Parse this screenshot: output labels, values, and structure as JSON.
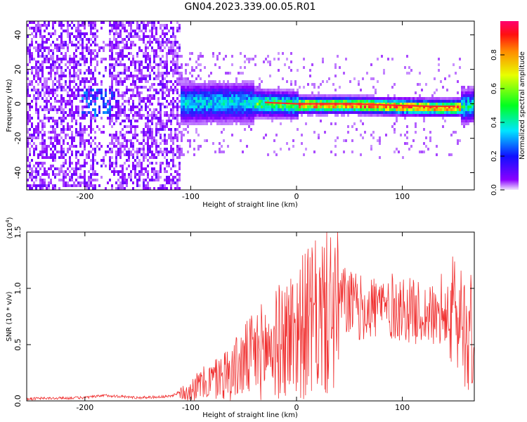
{
  "figure": {
    "title": "GN04.2023.339.00.05.R01"
  },
  "colors": {
    "line": "#f03030",
    "axis": "#000000",
    "background": "#ffffff",
    "ridge": "#ff2a2a"
  },
  "chart_data": [
    {
      "type": "heatmap",
      "title": "",
      "xlabel": "Height of straight line (km)",
      "ylabel": "Frequency (Hz)",
      "xlim": [
        -255,
        168
      ],
      "ylim": [
        -50,
        48
      ],
      "xticks": [
        -200,
        -100,
        0,
        100
      ],
      "yticks": [
        -40,
        -20,
        0,
        20,
        40
      ],
      "colormap": [
        "#e8d8ff",
        "#8a00ff",
        "#2020ff",
        "#00e0ff",
        "#00ff40",
        "#f0ff00",
        "#ff8000",
        "#ff0050"
      ],
      "colorbar": {
        "label": "Normalized spectral amplitude",
        "range": [
          0,
          1
        ],
        "ticks": [
          "0.0",
          "0.2",
          "0.4",
          "0.6",
          "0.8"
        ]
      },
      "ridge": {
        "x": [
          -110,
          -80,
          -50,
          -20,
          0,
          50,
          100,
          130,
          150,
          168
        ],
        "y": [
          1,
          1.5,
          1.5,
          0.5,
          0,
          0,
          -1,
          -1.5,
          -1.5,
          0
        ]
      },
      "grid": false
    },
    {
      "type": "line",
      "title": "",
      "xlabel": "Height of straight line (km)",
      "ylabel": "SNR (10 * v/v)",
      "multiplier": "(x10",
      "multiplier_exp": "4",
      "multiplier_close": ")",
      "xlim": [
        -255,
        168
      ],
      "ylim": [
        0,
        1.5
      ],
      "xticks": [
        -200,
        -100,
        0,
        100
      ],
      "yticks": [
        "0.0",
        "0.5",
        "1.0",
        "1.5"
      ],
      "series": [
        {
          "x": [
            -255,
            -200,
            -180,
            -150,
            -120,
            -100,
            -80,
            -60,
            -40,
            -20,
            0,
            20,
            40,
            60,
            80,
            100,
            120,
            140,
            150,
            168
          ],
          "y": [
            0.02,
            0.03,
            0.05,
            0.03,
            0.04,
            0.12,
            0.2,
            0.3,
            0.45,
            0.55,
            0.7,
            0.8,
            0.95,
            0.85,
            0.88,
            0.85,
            0.8,
            0.75,
            0.85,
            0.6
          ]
        }
      ],
      "grid": false
    }
  ]
}
